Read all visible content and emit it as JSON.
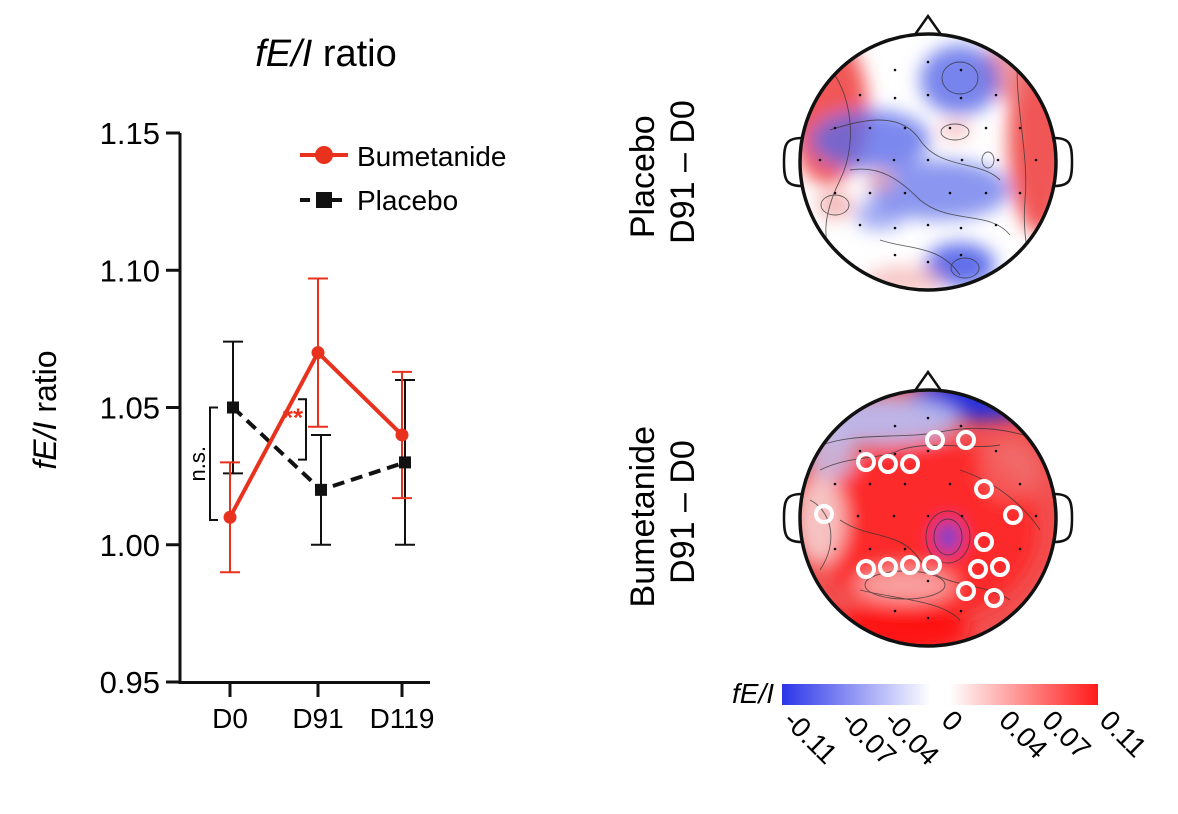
{
  "chart_data": [
    {
      "type": "line",
      "title_italic": "fE/I",
      "title_rest": " ratio",
      "ylabel_italic": "fE/I",
      "ylabel_rest": " ratio",
      "xlabel": "",
      "categories": [
        "D0",
        "D91",
        "D119"
      ],
      "ylim": [
        0.95,
        1.15
      ],
      "yticks": [
        "0.95",
        "1.00",
        "1.05",
        "1.10",
        "1.15"
      ],
      "ytick_values": [
        0.95,
        1.0,
        1.05,
        1.1,
        1.15
      ],
      "grid": false,
      "legend_position": "top-right",
      "series": [
        {
          "name": "Bumetanide",
          "color": "#e8321e",
          "line_style": "solid",
          "marker": "circle",
          "values": [
            1.01,
            1.07,
            1.04
          ],
          "error_low": [
            0.99,
            1.043,
            1.017
          ],
          "error_high": [
            1.03,
            1.097,
            1.063
          ]
        },
        {
          "name": "Placebo",
          "color": "#111111",
          "line_style": "dashed",
          "marker": "square",
          "values": [
            1.05,
            1.02,
            1.03
          ],
          "error_low": [
            1.026,
            1.0,
            1.0
          ],
          "error_high": [
            1.074,
            1.04,
            1.06
          ]
        }
      ],
      "annotations": {
        "ns_label": "n.s.",
        "ns_range": [
          1.009,
          1.05
        ],
        "sig_label": "**",
        "sig_color": "#e8321e",
        "sig_range": [
          1.031,
          1.053
        ]
      }
    },
    {
      "type": "heatmap",
      "subtype": "scalp-topography",
      "maps": [
        {
          "label_line1": "Placebo",
          "label_line2": "D91 – D0",
          "significant_electrodes": 0
        },
        {
          "label_line1": "Bumetanide",
          "label_line2": "D91 – D0",
          "significant_electrodes": 20
        }
      ],
      "colorbar": {
        "label_italic": "fE/I",
        "low_color": "#2b35e8",
        "mid_color": "#ffffff",
        "high_color": "#ff1a1a",
        "ticks": [
          "-0.11",
          "-0.07",
          "-0.04",
          "0",
          "0.04",
          "0.07",
          "0.11"
        ],
        "tick_values": [
          -0.11,
          -0.07,
          -0.04,
          0,
          0.04,
          0.07,
          0.11
        ]
      }
    }
  ]
}
